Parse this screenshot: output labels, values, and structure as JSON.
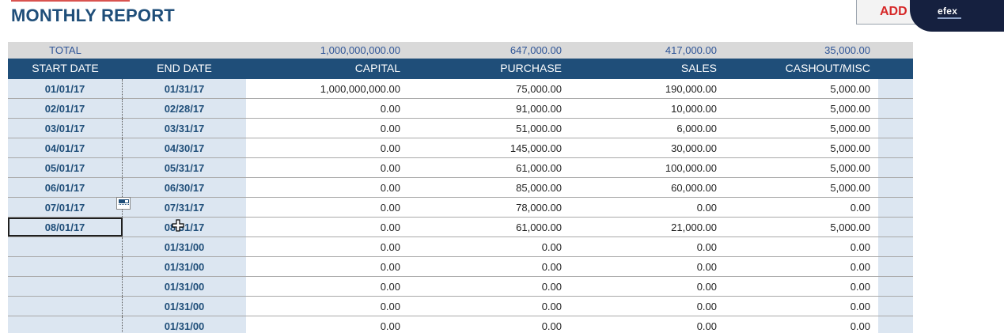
{
  "header": {
    "title": "MONTHLY REPORT",
    "add_label": "ADD",
    "brand": "efex"
  },
  "totals": {
    "label": "TOTAL",
    "capital": "1,000,000,000.00",
    "purchase": "647,000.00",
    "sales": "417,000.00",
    "cashout": "35,000.00"
  },
  "columns": [
    "START DATE",
    "END DATE",
    "CAPITAL",
    "PURCHASE",
    "SALES",
    "CASHOUT/MISC"
  ],
  "rows": [
    {
      "start": "01/01/17",
      "end": "01/31/17",
      "capital": "1,000,000,000.00",
      "purchase": "75,000.00",
      "sales": "190,000.00",
      "cashout": "5,000.00"
    },
    {
      "start": "02/01/17",
      "end": "02/28/17",
      "capital": "0.00",
      "purchase": "91,000.00",
      "sales": "10,000.00",
      "cashout": "5,000.00"
    },
    {
      "start": "03/01/17",
      "end": "03/31/17",
      "capital": "0.00",
      "purchase": "51,000.00",
      "sales": "6,000.00",
      "cashout": "5,000.00"
    },
    {
      "start": "04/01/17",
      "end": "04/30/17",
      "capital": "0.00",
      "purchase": "145,000.00",
      "sales": "30,000.00",
      "cashout": "5,000.00"
    },
    {
      "start": "05/01/17",
      "end": "05/31/17",
      "capital": "0.00",
      "purchase": "61,000.00",
      "sales": "100,000.00",
      "cashout": "5,000.00"
    },
    {
      "start": "06/01/17",
      "end": "06/30/17",
      "capital": "0.00",
      "purchase": "85,000.00",
      "sales": "60,000.00",
      "cashout": "5,000.00"
    },
    {
      "start": "07/01/17",
      "end": "07/31/17",
      "capital": "0.00",
      "purchase": "78,000.00",
      "sales": "0.00",
      "cashout": "0.00"
    },
    {
      "start": "08/01/17",
      "end": "08/31/17",
      "capital": "0.00",
      "purchase": "61,000.00",
      "sales": "21,000.00",
      "cashout": "5,000.00"
    },
    {
      "start": "",
      "end": "01/31/00",
      "capital": "0.00",
      "purchase": "0.00",
      "sales": "0.00",
      "cashout": "0.00"
    },
    {
      "start": "",
      "end": "01/31/00",
      "capital": "0.00",
      "purchase": "0.00",
      "sales": "0.00",
      "cashout": "0.00"
    },
    {
      "start": "",
      "end": "01/31/00",
      "capital": "0.00",
      "purchase": "0.00",
      "sales": "0.00",
      "cashout": "0.00"
    },
    {
      "start": "",
      "end": "01/31/00",
      "capital": "0.00",
      "purchase": "0.00",
      "sales": "0.00",
      "cashout": "0.00"
    },
    {
      "start": "",
      "end": "01/31/00",
      "capital": "0.00",
      "purchase": "0.00",
      "sales": "0.00",
      "cashout": "0.00"
    }
  ],
  "selected_row": 7,
  "icons": {
    "fill_handle": "autofill-options-icon",
    "cursor": "move-cursor-icon"
  },
  "colors": {
    "title": "#1f4e79",
    "header_bg": "#1f4e79",
    "total_bg": "#d9d9d9",
    "date_bg": "#dce6f1",
    "add_text": "#d62828",
    "brand_bg": "#15203f"
  }
}
